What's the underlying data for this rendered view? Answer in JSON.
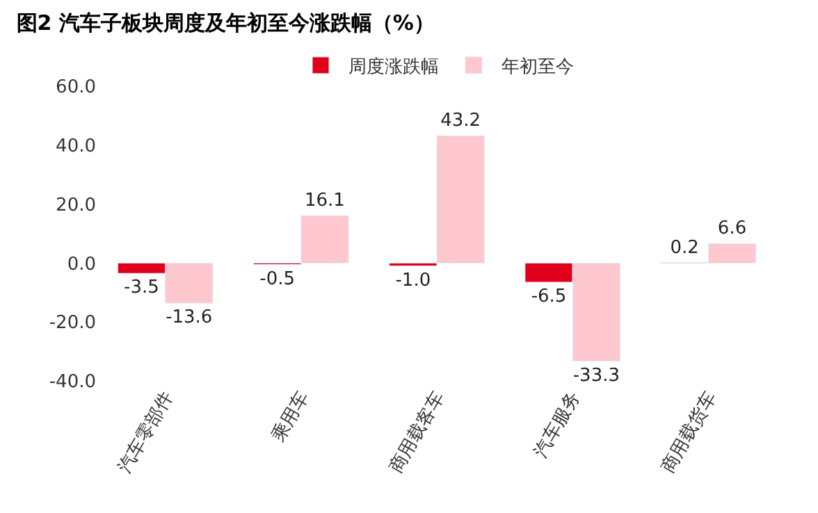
{
  "chart_data": {
    "type": "bar",
    "title": "图2 汽车子板块周度及年初至今涨跌幅（%）",
    "categories": [
      "汽车零部件",
      "乘用车",
      "商用载客车",
      "汽车服务",
      "商用载货车"
    ],
    "series": [
      {
        "name": "周度涨跌幅",
        "color": "#e0001b",
        "values": [
          -3.5,
          -0.5,
          -1.0,
          -6.5,
          0.2
        ],
        "value_labels": [
          "-3.5",
          "-0.5",
          "-1.0",
          "-6.5",
          "0.2"
        ]
      },
      {
        "name": "年初至今",
        "color": "#ffc7ce",
        "values": [
          -13.6,
          16.1,
          43.2,
          -33.3,
          6.6
        ],
        "value_labels": [
          "-13.6",
          "16.1",
          "43.2",
          "-33.3",
          "6.6"
        ]
      }
    ],
    "ylim": [
      -40,
      60
    ],
    "yticks": [
      {
        "value": -40,
        "label": "-40.0"
      },
      {
        "value": -20,
        "label": "-20.0"
      },
      {
        "value": 0,
        "label": "0.0"
      },
      {
        "value": 20,
        "label": "20.0"
      },
      {
        "value": 40,
        "label": "40.0"
      },
      {
        "value": 60,
        "label": "60.0"
      }
    ],
    "legend": "top"
  }
}
